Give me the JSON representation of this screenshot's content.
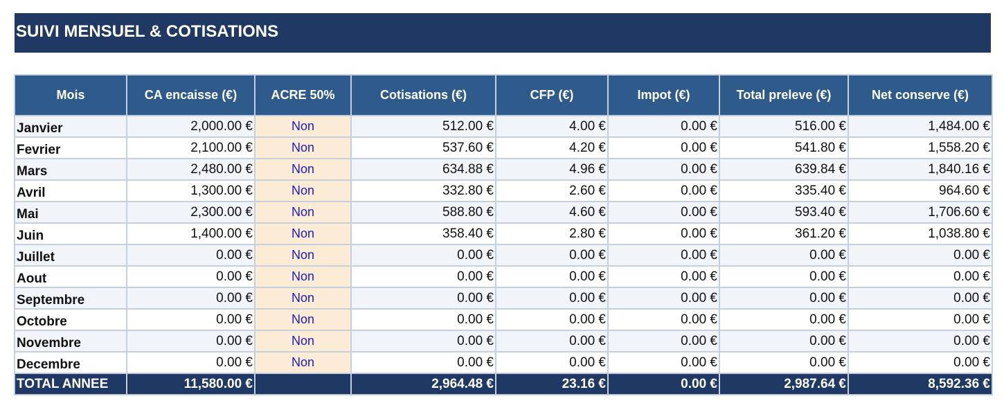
{
  "title": "SUIVI MENSUEL & COTISATIONS",
  "columns": [
    "Mois",
    "CA encaisse (€)",
    "ACRE 50%",
    "Cotisations (€)",
    "CFP (€)",
    "Impot (€)",
    "Total preleve (€)",
    "Net conserve (€)"
  ],
  "rows": [
    {
      "mois": "Janvier",
      "ca": "2,000.00 €",
      "acre": "Non",
      "cotisations": "512.00 €",
      "cfp": "4.00 €",
      "impot": "0.00 €",
      "total": "516.00 €",
      "net": "1,484.00 €"
    },
    {
      "mois": "Fevrier",
      "ca": "2,100.00 €",
      "acre": "Non",
      "cotisations": "537.60 €",
      "cfp": "4.20 €",
      "impot": "0.00 €",
      "total": "541.80 €",
      "net": "1,558.20 €"
    },
    {
      "mois": "Mars",
      "ca": "2,480.00 €",
      "acre": "Non",
      "cotisations": "634.88 €",
      "cfp": "4.96 €",
      "impot": "0.00 €",
      "total": "639.84 €",
      "net": "1,840.16 €"
    },
    {
      "mois": "Avril",
      "ca": "1,300.00 €",
      "acre": "Non",
      "cotisations": "332.80 €",
      "cfp": "2.60 €",
      "impot": "0.00 €",
      "total": "335.40 €",
      "net": "964.60 €"
    },
    {
      "mois": "Mai",
      "ca": "2,300.00 €",
      "acre": "Non",
      "cotisations": "588.80 €",
      "cfp": "4.60 €",
      "impot": "0.00 €",
      "total": "593.40 €",
      "net": "1,706.60 €"
    },
    {
      "mois": "Juin",
      "ca": "1,400.00 €",
      "acre": "Non",
      "cotisations": "358.40 €",
      "cfp": "2.80 €",
      "impot": "0.00 €",
      "total": "361.20 €",
      "net": "1,038.80 €"
    },
    {
      "mois": "Juillet",
      "ca": "0.00 €",
      "acre": "Non",
      "cotisations": "0.00 €",
      "cfp": "0.00 €",
      "impot": "0.00 €",
      "total": "0.00 €",
      "net": "0.00 €"
    },
    {
      "mois": "Aout",
      "ca": "0.00 €",
      "acre": "Non",
      "cotisations": "0.00 €",
      "cfp": "0.00 €",
      "impot": "0.00 €",
      "total": "0.00 €",
      "net": "0.00 €"
    },
    {
      "mois": "Septembre",
      "ca": "0.00 €",
      "acre": "Non",
      "cotisations": "0.00 €",
      "cfp": "0.00 €",
      "impot": "0.00 €",
      "total": "0.00 €",
      "net": "0.00 €"
    },
    {
      "mois": "Octobre",
      "ca": "0.00 €",
      "acre": "Non",
      "cotisations": "0.00 €",
      "cfp": "0.00 €",
      "impot": "0.00 €",
      "total": "0.00 €",
      "net": "0.00 €"
    },
    {
      "mois": "Novembre",
      "ca": "0.00 €",
      "acre": "Non",
      "cotisations": "0.00 €",
      "cfp": "0.00 €",
      "impot": "0.00 €",
      "total": "0.00 €",
      "net": "0.00 €"
    },
    {
      "mois": "Decembre",
      "ca": "0.00 €",
      "acre": "Non",
      "cotisations": "0.00 €",
      "cfp": "0.00 €",
      "impot": "0.00 €",
      "total": "0.00 €",
      "net": "0.00 €"
    }
  ],
  "totals": {
    "label": "TOTAL ANNEE",
    "ca": "11,580.00 €",
    "acre": "",
    "cotisations": "2,964.48 €",
    "cfp": "23.16 €",
    "impot": "0.00 €",
    "total": "2,987.64 €",
    "net": "8,592.36 €"
  },
  "colors": {
    "title_bg": "#1f3864",
    "header_bg": "#2e5a8c",
    "acre_bg": "#fcecd5",
    "acre_text": "#1a1ad0"
  }
}
